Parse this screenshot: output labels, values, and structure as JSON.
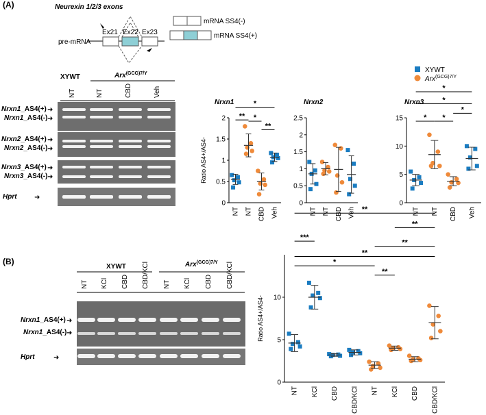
{
  "panel_A": {
    "label": "(A)",
    "schematic": {
      "title": "Neurexin 1/2/3 exons",
      "premrna_label": "pre-mRNA",
      "exons": [
        "Ex21",
        "Ex22",
        "Ex23"
      ],
      "mrna_minus": "mRNA SS4(-)",
      "mrna_plus": "mRNA SS4(+)"
    },
    "gel": {
      "group_wt": "XYWT",
      "group_arx_base": "Arx",
      "group_arx_sup": "(GCG)7/Y",
      "lanes": [
        "NT",
        "NT",
        "CBD",
        "Veh"
      ],
      "band_labels": [
        {
          "gene": "Nrxn1",
          "suffix": "_AS4(+)"
        },
        {
          "gene": "Nrxn1",
          "suffix": "_AS4(-)"
        },
        {
          "gene": "Nrxn2",
          "suffix": "_AS4(+)"
        },
        {
          "gene": "Nrxn2",
          "suffix": "_AS4(-)"
        },
        {
          "gene": "Nrxn3",
          "suffix": "_AS4(+)"
        },
        {
          "gene": "Nrxn3",
          "suffix": "_AS4(-)"
        }
      ],
      "hprt": "Hprt"
    },
    "legend": {
      "wt": "XYWT",
      "arx_base": "Arx",
      "arx_sup": "(GCG)7/Y",
      "wt_color": "#1a7cc1",
      "arx_color": "#ef8a3a"
    }
  },
  "panel_B": {
    "label": "(B)",
    "gel": {
      "group_wt": "XYWT",
      "group_arx_base": "Arx",
      "group_arx_sup": "(GCG)7/Y",
      "lanes": [
        "NT",
        "KCl",
        "CBD",
        "CBD/KCl",
        "NT",
        "KCl",
        "CBD",
        "CBD/KCl"
      ],
      "band_labels": [
        {
          "gene": "Nrxn1",
          "suffix": "_AS4(+)"
        },
        {
          "gene": "Nrxn1",
          "suffix": "_AS4(-)"
        }
      ],
      "hprt": "Hprt"
    }
  },
  "chart_data": [
    {
      "type": "scatter",
      "title": "Nrxn1",
      "ylabel": "Ratio AS4+/AS4-",
      "ylim": [
        0,
        2
      ],
      "yticks": [
        "0",
        "0.5",
        "1",
        "1.5",
        "2"
      ],
      "categories": [
        "NT",
        "NT",
        "CBD",
        "Veh"
      ],
      "genotype": [
        "wt",
        "arx",
        "arx",
        "wt"
      ],
      "means": [
        0.55,
        1.35,
        0.5,
        1.07
      ],
      "sd": [
        0.12,
        0.27,
        0.2,
        0.1
      ],
      "points": [
        [
          0.65,
          0.6,
          0.53,
          0.48,
          0.36
        ],
        [
          1.8,
          1.4,
          1.3,
          1.22,
          1.15
        ],
        [
          0.75,
          0.55,
          0.45,
          0.42,
          0.2
        ],
        [
          1.17,
          1.13,
          1.07,
          1.05,
          0.95
        ]
      ],
      "significance": [
        {
          "from": 0,
          "to": 1,
          "label": "**",
          "y": 1.95
        },
        {
          "from": 1,
          "to": 2,
          "label": "*",
          "y": 1.92
        },
        {
          "from": 0,
          "to": 3,
          "label": "*",
          "y": 2.25
        },
        {
          "from": 2,
          "to": 3,
          "label": "**",
          "y": 1.72
        }
      ]
    },
    {
      "type": "scatter",
      "title": "Nrxn2",
      "ylim": [
        0,
        2.5
      ],
      "yticks": [
        "0",
        "0.5",
        "1",
        "1.5",
        "2",
        "2.5"
      ],
      "categories": [
        "NT",
        "NT",
        "CBD",
        "Veh"
      ],
      "genotype": [
        "wt",
        "arx",
        "arx",
        "wt"
      ],
      "means": [
        0.85,
        1.0,
        0.98,
        0.83
      ],
      "sd": [
        0.3,
        0.18,
        0.65,
        0.55
      ],
      "points": [
        [
          1.2,
          0.95,
          0.85,
          0.55,
          0.4
        ],
        [
          1.2,
          1.05,
          0.95,
          0.92,
          0.85
        ],
        [
          1.7,
          1.6,
          0.8,
          0.6,
          0.3
        ],
        [
          1.55,
          1.15,
          0.7,
          0.5,
          0.25
        ]
      ],
      "significance": []
    },
    {
      "type": "scatter",
      "title": "Nrxn3",
      "ylim": [
        0,
        15
      ],
      "yticks": [
        "0",
        "5",
        "10",
        "15"
      ],
      "categories": [
        "NT",
        "NT",
        "CBD",
        "Veh"
      ],
      "genotype": [
        "wt",
        "arx",
        "arx",
        "wt"
      ],
      "means": [
        4.0,
        8.5,
        3.8,
        7.8
      ],
      "sd": [
        1.0,
        2.5,
        0.8,
        2.0
      ],
      "points": [
        [
          5.5,
          4.5,
          4.0,
          3.5,
          2.5
        ],
        [
          12,
          9,
          7,
          6.5,
          6.5
        ],
        [
          5,
          4.2,
          3.6,
          3.5,
          2.7
        ],
        [
          10,
          9.5,
          8,
          6.5,
          6
        ]
      ],
      "significance": [
        {
          "from": 0,
          "to": 1,
          "label": "*",
          "y": 14.4
        },
        {
          "from": 1,
          "to": 2,
          "label": "*",
          "y": 14.4
        },
        {
          "from": 2,
          "to": 3,
          "label": "*",
          "y": 15.8
        },
        {
          "from": 0,
          "to": 3,
          "label": "*",
          "y": 17.5
        },
        {
          "from": 0,
          "to": 3,
          "label": "*",
          "y": 19.6
        }
      ]
    },
    {
      "type": "scatter",
      "ylabel": "Ratio AS4+/AS4-",
      "ylim": [
        0,
        15
      ],
      "yticks": [
        "0",
        "5",
        "10"
      ],
      "categories": [
        "NT",
        "KCl",
        "CBD",
        "CBD/KCl",
        "NT",
        "KCl",
        "CBD",
        "CBD/KCl"
      ],
      "genotype": [
        "wt",
        "wt",
        "wt",
        "wt",
        "arx",
        "arx",
        "arx",
        "arx"
      ],
      "means": [
        4.6,
        10.0,
        3.2,
        3.5,
        2.0,
        4.0,
        2.7,
        7.0
      ],
      "sd": [
        1.0,
        1.4,
        0.15,
        0.3,
        0.4,
        0.25,
        0.3,
        1.9
      ],
      "points": [
        [
          5.7,
          4.7,
          4.5,
          4.2,
          3.9
        ],
        [
          11.7,
          10.5,
          10.2,
          9.9,
          8.8
        ],
        [
          3.3,
          3.25,
          3.2,
          3.1,
          3.05
        ],
        [
          3.8,
          3.65,
          3.5,
          3.4,
          3.2
        ],
        [
          2.4,
          2.2,
          1.9,
          1.7,
          1.5
        ],
        [
          4.3,
          4.1,
          4.0,
          3.9,
          3.8
        ],
        [
          3.1,
          2.8,
          2.7,
          2.6,
          2.5
        ],
        [
          9.0,
          7.8,
          6.8,
          6.0,
          5.2
        ]
      ],
      "significance": [
        {
          "from": 0,
          "to": 1,
          "label": "***",
          "y": 16.6
        },
        {
          "from": 0,
          "to": 4,
          "label": "*",
          "y": 13.7
        },
        {
          "from": 4,
          "to": 5,
          "label": "**",
          "y": 12.6
        },
        {
          "from": 0,
          "to": 7,
          "label": "**",
          "y": 19.9
        },
        {
          "from": 0,
          "to": 7,
          "label": "**",
          "y": 14.8
        },
        {
          "from": 4,
          "to": 7,
          "label": "**",
          "y": 16.0
        },
        {
          "from": 5,
          "to": 7,
          "label": "**",
          "y": 18.2
        }
      ]
    }
  ]
}
